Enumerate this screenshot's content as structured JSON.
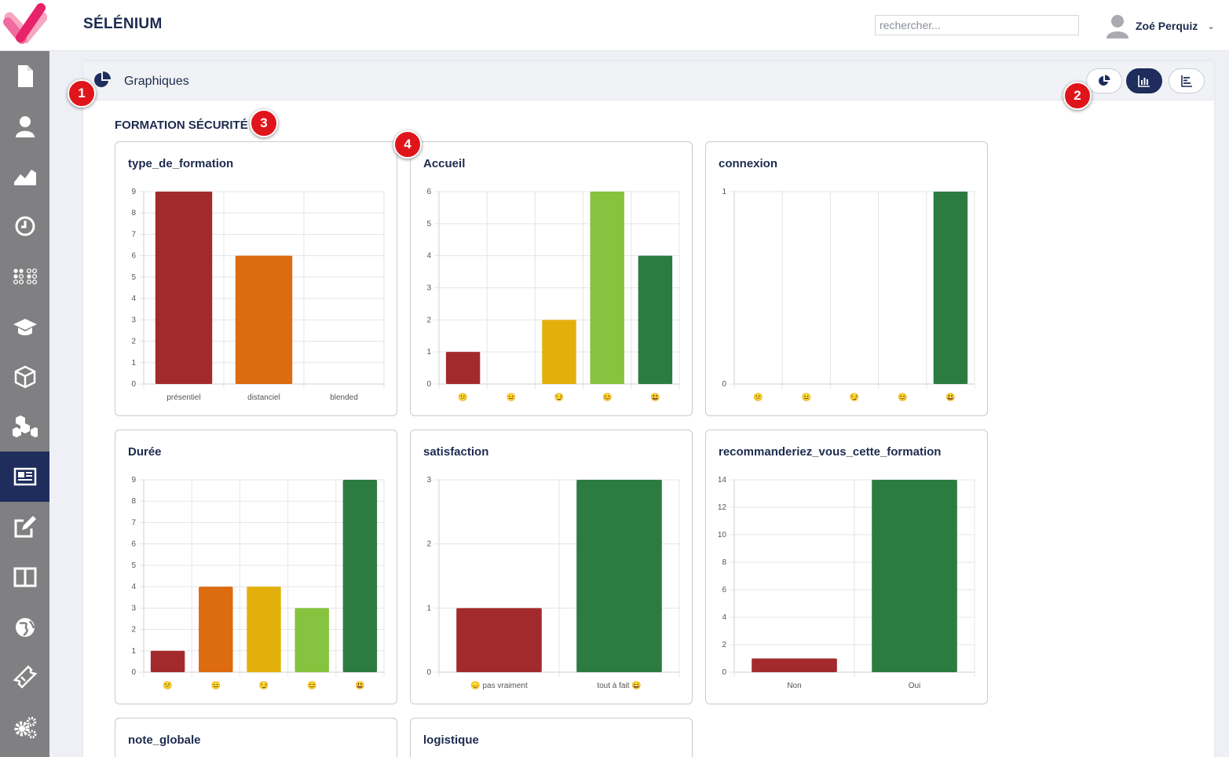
{
  "app": {
    "title": "SÉLÉNIUM"
  },
  "search": {
    "placeholder": "rechercher..."
  },
  "user": {
    "name": "Zoé Perquiz"
  },
  "sidebar": {
    "items": [
      {
        "icon": "document-icon"
      },
      {
        "icon": "user-icon"
      },
      {
        "icon": "area-chart-icon"
      },
      {
        "icon": "clock-icon"
      },
      {
        "icon": "dots-grid-icon"
      },
      {
        "icon": "graduation-cap-icon"
      },
      {
        "icon": "cube-icon"
      },
      {
        "icon": "cubes-icon"
      },
      {
        "icon": "newspaper-icon",
        "active": true
      },
      {
        "icon": "edit-icon"
      },
      {
        "icon": "columns-icon"
      },
      {
        "icon": "globe-icon"
      },
      {
        "icon": "ticket-icon"
      },
      {
        "icon": "gears-icon"
      }
    ]
  },
  "panel": {
    "title": "Graphiques"
  },
  "view_buttons": [
    {
      "icon": "pie-chart-icon",
      "active": false
    },
    {
      "icon": "bar-chart-icon",
      "active": true
    },
    {
      "icon": "list-icon",
      "active": false
    }
  ],
  "section": {
    "title": "FORMATION SÉCURITÉ"
  },
  "markers": [
    "1",
    "2",
    "3",
    "4"
  ],
  "colors": {
    "navy": "#1e2d5c",
    "red": "#a32a2c",
    "orange": "#dd6b0f",
    "yellow": "#e3b00b",
    "lightgreen": "#86c33e",
    "green": "#2c7c41"
  },
  "charts": [
    {
      "title": "type_de_formation"
    },
    {
      "title": "Accueil"
    },
    {
      "title": "connexion"
    },
    {
      "title": "Durée"
    },
    {
      "title": "satisfaction"
    },
    {
      "title": "recommanderiez_vous_cette_formation"
    },
    {
      "title": "note_globale"
    },
    {
      "title": "logistique"
    }
  ],
  "chart_data": [
    {
      "type": "bar",
      "title": "type_de_formation",
      "categories": [
        "présentiel",
        "distanciel",
        "blended"
      ],
      "values": [
        9,
        6,
        0
      ],
      "colors": [
        "#a32a2c",
        "#dd6b0f",
        "#a32a2c"
      ],
      "ylim": [
        0,
        9
      ],
      "yticks": [
        0,
        1,
        2,
        3,
        4,
        5,
        6,
        7,
        8,
        9
      ]
    },
    {
      "type": "bar",
      "title": "Accueil",
      "categories": [
        "😕",
        "😐",
        "😏",
        "😊",
        "😃"
      ],
      "values": [
        1,
        0,
        2,
        6,
        4
      ],
      "colors": [
        "#a32a2c",
        "#dd6b0f",
        "#e3b00b",
        "#86c33e",
        "#2c7c41"
      ],
      "ylim": [
        0,
        6
      ],
      "yticks": [
        0,
        1,
        2,
        3,
        4,
        5,
        6
      ]
    },
    {
      "type": "bar",
      "title": "connexion",
      "categories": [
        "😕",
        "😐",
        "😏",
        "😊",
        "😃"
      ],
      "values": [
        0,
        0,
        0,
        0,
        1
      ],
      "colors": [
        "#a32a2c",
        "#dd6b0f",
        "#e3b00b",
        "#86c33e",
        "#2c7c41"
      ],
      "ylim": [
        0,
        1
      ],
      "yticks": [
        0,
        1
      ]
    },
    {
      "type": "bar",
      "title": "Durée",
      "categories": [
        "😕",
        "😐",
        "😏",
        "😊",
        "😃"
      ],
      "values": [
        1,
        4,
        4,
        3,
        9
      ],
      "colors": [
        "#a32a2c",
        "#dd6b0f",
        "#e3b00b",
        "#86c33e",
        "#2c7c41"
      ],
      "ylim": [
        0,
        9
      ],
      "yticks": [
        0,
        1,
        2,
        3,
        4,
        5,
        6,
        7,
        8,
        9
      ]
    },
    {
      "type": "bar",
      "title": "satisfaction",
      "categories": [
        "😞 pas vraiment",
        "tout à fait 😄"
      ],
      "values": [
        1,
        3
      ],
      "colors": [
        "#a32a2c",
        "#2c7c41"
      ],
      "ylim": [
        0,
        3
      ],
      "yticks": [
        0,
        1,
        2,
        3
      ]
    },
    {
      "type": "bar",
      "title": "recommanderiez_vous_cette_formation",
      "categories": [
        "Non",
        "Oui"
      ],
      "values": [
        1,
        14
      ],
      "colors": [
        "#a32a2c",
        "#2c7c41"
      ],
      "ylim": [
        0,
        14
      ],
      "yticks": [
        0,
        2,
        4,
        6,
        8,
        10,
        12,
        14
      ]
    }
  ]
}
